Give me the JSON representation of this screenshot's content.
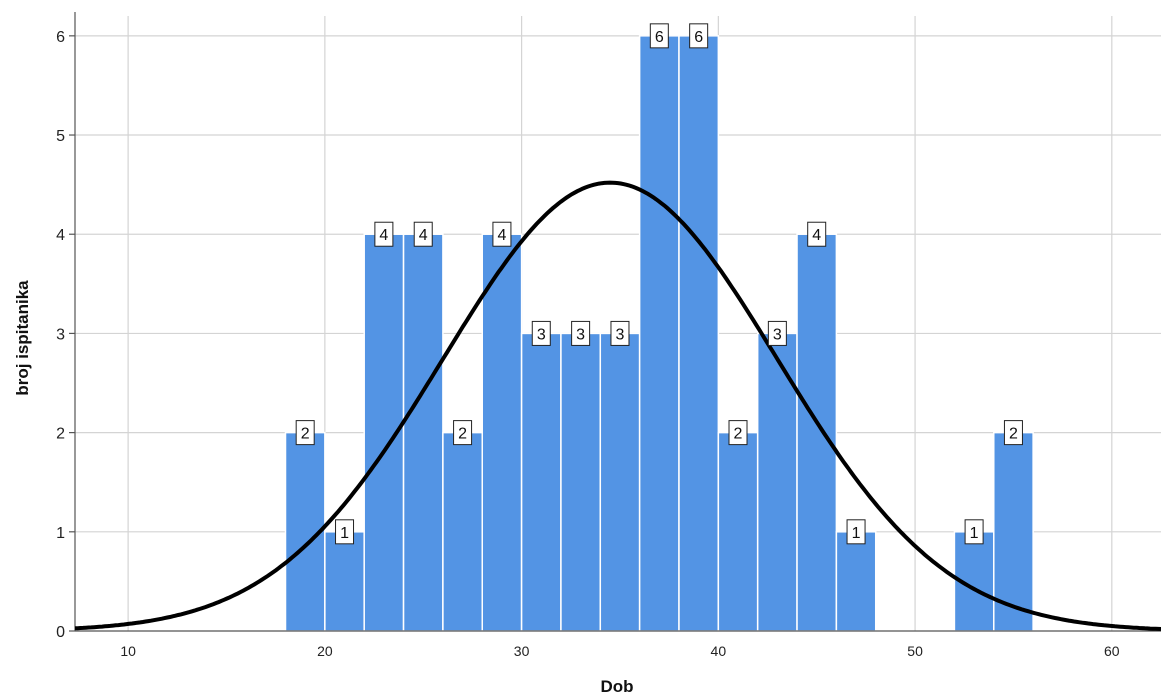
{
  "chart_data": {
    "type": "bar",
    "xlabel": "Dob",
    "ylabel": "broj ispitanika",
    "xlim": [
      7.3,
      62.5
    ],
    "ylim": [
      0,
      6.2
    ],
    "xticks": [
      10,
      20,
      30,
      40,
      50,
      60
    ],
    "yticks": [
      0,
      1,
      2,
      3,
      4,
      5,
      6
    ],
    "grid": true,
    "bin_width": 2,
    "bins": [
      {
        "start": 18,
        "end": 20,
        "count": 2
      },
      {
        "start": 20,
        "end": 22,
        "count": 1
      },
      {
        "start": 22,
        "end": 24,
        "count": 4
      },
      {
        "start": 24,
        "end": 26,
        "count": 4
      },
      {
        "start": 26,
        "end": 28,
        "count": 2
      },
      {
        "start": 28,
        "end": 30,
        "count": 4
      },
      {
        "start": 30,
        "end": 32,
        "count": 3
      },
      {
        "start": 32,
        "end": 34,
        "count": 3
      },
      {
        "start": 34,
        "end": 36,
        "count": 3
      },
      {
        "start": 36,
        "end": 38,
        "count": 6
      },
      {
        "start": 38,
        "end": 40,
        "count": 6
      },
      {
        "start": 40,
        "end": 42,
        "count": 2
      },
      {
        "start": 42,
        "end": 44,
        "count": 3
      },
      {
        "start": 44,
        "end": 46,
        "count": 4
      },
      {
        "start": 46,
        "end": 48,
        "count": 1
      },
      {
        "start": 52,
        "end": 54,
        "count": 1
      },
      {
        "start": 54,
        "end": 56,
        "count": 2
      }
    ],
    "normal_curve": {
      "mean": 34.5,
      "sd": 8.5,
      "peak": 4.52
    },
    "colors": {
      "bar": "#5394e4",
      "bar_edge": "#ffffff",
      "curve": "#000000",
      "grid": "#d4d4d4"
    }
  }
}
